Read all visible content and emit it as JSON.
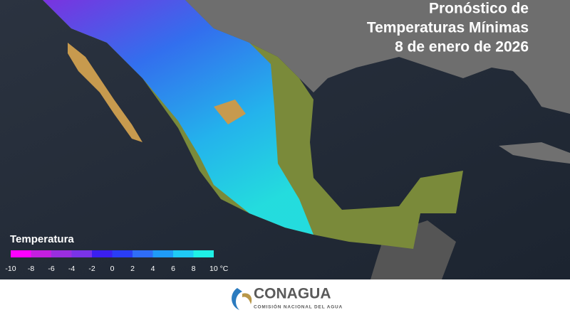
{
  "header": {
    "title_lines": [
      "Pronóstico de",
      "Temperaturas Mínimas",
      "8 de enero de 2026"
    ]
  },
  "legend": {
    "title": "Temperatura",
    "ticks": [
      -10,
      -8,
      -6,
      -4,
      -2,
      0,
      2,
      4,
      6,
      8,
      {
        "value": 10,
        "label": "10 °C"
      }
    ],
    "colors": [
      "#ff00ff",
      "#c41fe0",
      "#9a2ee0",
      "#7a33e8",
      "#3b1ff0",
      "#2a3df5",
      "#2f6df7",
      "#1f9bf7",
      "#1fcaf5",
      "#1ff0e6"
    ]
  },
  "footer": {
    "logo": "CONAGUA",
    "subtitle": "COMISIÓN NACIONAL DEL AGUA"
  }
}
